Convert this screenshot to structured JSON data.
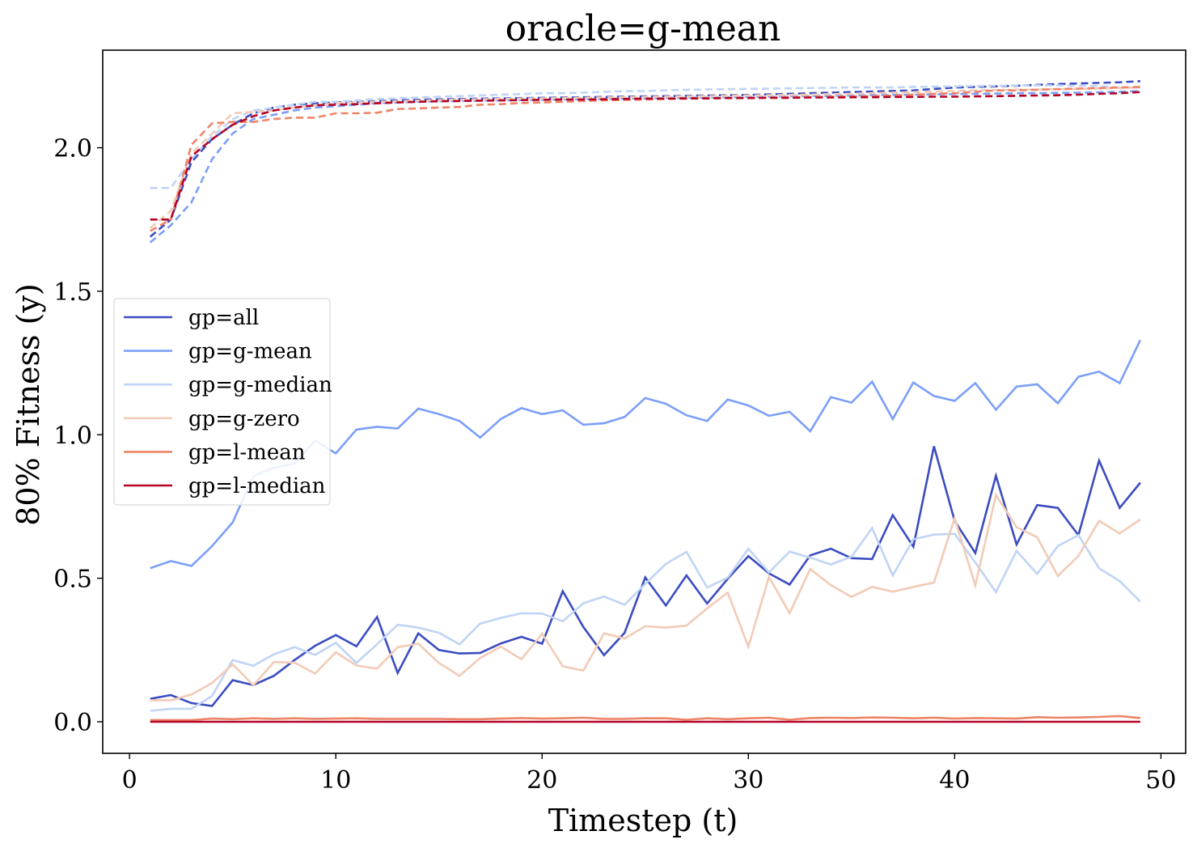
{
  "chart_data": {
    "type": "line",
    "title": "oracle=g-mean",
    "xlabel": "Timestep (t)",
    "ylabel": "80% Fitness (y)",
    "xlim": [
      -1.3,
      51.2
    ],
    "ylim": [
      -0.11,
      2.34
    ],
    "xticks": [
      0,
      10,
      20,
      30,
      40,
      50
    ],
    "yticks": [
      0.0,
      0.5,
      1.0,
      1.5,
      2.0
    ],
    "xtick_labels": [
      "0",
      "10",
      "20",
      "30",
      "40",
      "50"
    ],
    "ytick_labels": [
      "0.0",
      "0.5",
      "1.0",
      "1.5",
      "2.0"
    ],
    "grid": false,
    "legend_placement": "center-left",
    "x": [
      1,
      2,
      3,
      4,
      5,
      6,
      7,
      8,
      9,
      10,
      11,
      12,
      13,
      14,
      15,
      16,
      17,
      18,
      19,
      20,
      21,
      22,
      23,
      24,
      25,
      26,
      27,
      28,
      29,
      30,
      31,
      32,
      33,
      34,
      35,
      36,
      37,
      38,
      39,
      40,
      41,
      42,
      43,
      44,
      45,
      46,
      47,
      48,
      49
    ],
    "series": [
      {
        "name": "gp=all",
        "color": "#3b4cc0",
        "solid": [
          0.08,
          0.093,
          0.065,
          0.055,
          0.145,
          0.128,
          0.16,
          0.215,
          0.265,
          0.302,
          0.263,
          0.365,
          0.17,
          0.308,
          0.25,
          0.238,
          0.24,
          0.273,
          0.296,
          0.272,
          0.455,
          0.33,
          0.232,
          0.31,
          0.503,
          0.405,
          0.51,
          0.412,
          0.498,
          0.577,
          0.517,
          0.478,
          0.58,
          0.603,
          0.57,
          0.567,
          0.72,
          0.61,
          0.96,
          0.7,
          0.588,
          0.857,
          0.618,
          0.755,
          0.745,
          0.65,
          0.91,
          0.745,
          0.833
        ],
        "dashed": [
          1.69,
          1.75,
          1.95,
          2.03,
          2.08,
          2.12,
          2.14,
          2.15,
          2.155,
          2.158,
          2.16,
          2.162,
          2.165,
          2.167,
          2.169,
          2.17,
          2.171,
          2.172,
          2.173,
          2.174,
          2.175,
          2.176,
          2.177,
          2.178,
          2.179,
          2.18,
          2.181,
          2.182,
          2.183,
          2.184,
          2.186,
          2.188,
          2.19,
          2.192,
          2.194,
          2.196,
          2.198,
          2.2,
          2.205,
          2.21,
          2.212,
          2.214,
          2.216,
          2.219,
          2.222,
          2.224,
          2.226,
          2.228,
          2.232
        ]
      },
      {
        "name": "gp=g-mean",
        "color": "#7b9ff9",
        "solid": [
          0.535,
          0.56,
          0.543,
          0.612,
          0.695,
          0.855,
          0.885,
          0.9,
          0.98,
          0.935,
          1.018,
          1.028,
          1.022,
          1.091,
          1.072,
          1.048,
          0.99,
          1.055,
          1.093,
          1.072,
          1.085,
          1.035,
          1.04,
          1.062,
          1.128,
          1.108,
          1.068,
          1.048,
          1.123,
          1.102,
          1.066,
          1.08,
          1.012,
          1.131,
          1.112,
          1.185,
          1.055,
          1.182,
          1.135,
          1.118,
          1.18,
          1.087,
          1.168,
          1.176,
          1.11,
          1.202,
          1.22,
          1.18,
          1.33
        ],
        "dashed": [
          1.67,
          1.73,
          1.81,
          1.96,
          2.05,
          2.1,
          2.115,
          2.13,
          2.14,
          2.145,
          2.15,
          2.155,
          2.158,
          2.16,
          2.162,
          2.163,
          2.164,
          2.165,
          2.166,
          2.167,
          2.168,
          2.169,
          2.17,
          2.171,
          2.172,
          2.173,
          2.174,
          2.175,
          2.176,
          2.177,
          2.178,
          2.179,
          2.18,
          2.181,
          2.182,
          2.183,
          2.184,
          2.185,
          2.186,
          2.187,
          2.188,
          2.189,
          2.19,
          2.19,
          2.191,
          2.192,
          2.193,
          2.195,
          2.198
        ]
      },
      {
        "name": "gp=g-median",
        "color": "#c0d4f5",
        "solid": [
          0.038,
          0.045,
          0.045,
          0.09,
          0.215,
          0.195,
          0.235,
          0.26,
          0.233,
          0.275,
          0.205,
          0.27,
          0.338,
          0.328,
          0.31,
          0.27,
          0.342,
          0.362,
          0.378,
          0.377,
          0.35,
          0.413,
          0.436,
          0.408,
          0.48,
          0.55,
          0.592,
          0.468,
          0.502,
          0.603,
          0.52,
          0.593,
          0.572,
          0.548,
          0.575,
          0.675,
          0.51,
          0.636,
          0.652,
          0.655,
          0.555,
          0.452,
          0.595,
          0.515,
          0.612,
          0.65,
          0.535,
          0.49,
          0.418
        ],
        "dashed": [
          1.86,
          1.86,
          1.96,
          2.04,
          2.1,
          2.13,
          2.14,
          2.15,
          2.16,
          2.16,
          2.165,
          2.17,
          2.172,
          2.175,
          2.178,
          2.18,
          2.182,
          2.185,
          2.187,
          2.19,
          2.19,
          2.192,
          2.195,
          2.197,
          2.198,
          2.2,
          2.202,
          2.203,
          2.204,
          2.205,
          2.206,
          2.207,
          2.208,
          2.209,
          2.21,
          2.21,
          2.21,
          2.212,
          2.213,
          2.214,
          2.215,
          2.216,
          2.217,
          2.217,
          2.217,
          2.216,
          2.215,
          2.21,
          2.21
        ]
      },
      {
        "name": "gp=g-zero",
        "color": "#f2cbb7",
        "solid": [
          0.075,
          0.075,
          0.095,
          0.135,
          0.2,
          0.127,
          0.208,
          0.206,
          0.168,
          0.242,
          0.196,
          0.185,
          0.26,
          0.272,
          0.205,
          0.16,
          0.222,
          0.262,
          0.218,
          0.307,
          0.193,
          0.178,
          0.308,
          0.29,
          0.333,
          0.328,
          0.335,
          0.395,
          0.45,
          0.262,
          0.505,
          0.378,
          0.532,
          0.476,
          0.435,
          0.47,
          0.453,
          0.47,
          0.485,
          0.71,
          0.475,
          0.79,
          0.678,
          0.643,
          0.508,
          0.578,
          0.7,
          0.656,
          0.705
        ],
        "dashed": [
          1.72,
          1.78,
          1.98,
          2.05,
          2.12,
          2.125,
          2.13,
          2.14,
          2.148,
          2.155,
          2.158,
          2.16,
          2.162,
          2.164,
          2.166,
          2.168,
          2.169,
          2.17,
          2.171,
          2.172,
          2.173,
          2.174,
          2.175,
          2.176,
          2.177,
          2.178,
          2.179,
          2.18,
          2.181,
          2.182,
          2.183,
          2.184,
          2.185,
          2.187,
          2.188,
          2.19,
          2.192,
          2.194,
          2.196,
          2.198,
          2.2,
          2.201,
          2.202,
          2.203,
          2.204,
          2.205,
          2.206,
          2.208,
          2.21
        ]
      },
      {
        "name": "gp=l-mean",
        "color": "#ee8468",
        "solid": [
          0.006,
          0.006,
          0.006,
          0.011,
          0.009,
          0.012,
          0.01,
          0.012,
          0.01,
          0.011,
          0.012,
          0.01,
          0.01,
          0.01,
          0.01,
          0.009,
          0.009,
          0.011,
          0.013,
          0.011,
          0.012,
          0.014,
          0.01,
          0.01,
          0.012,
          0.012,
          0.007,
          0.012,
          0.009,
          0.012,
          0.014,
          0.007,
          0.013,
          0.014,
          0.013,
          0.015,
          0.014,
          0.012,
          0.014,
          0.011,
          0.013,
          0.012,
          0.011,
          0.016,
          0.014,
          0.015,
          0.017,
          0.02,
          0.013
        ],
        "dashed": [
          1.71,
          1.75,
          2.01,
          2.085,
          2.09,
          2.09,
          2.1,
          2.105,
          2.105,
          2.12,
          2.12,
          2.122,
          2.135,
          2.137,
          2.14,
          2.142,
          2.15,
          2.152,
          2.156,
          2.158,
          2.16,
          2.163,
          2.165,
          2.167,
          2.168,
          2.17,
          2.171,
          2.172,
          2.173,
          2.174,
          2.175,
          2.176,
          2.177,
          2.178,
          2.179,
          2.18,
          2.182,
          2.185,
          2.188,
          2.19,
          2.195,
          2.2,
          2.2,
          2.202,
          2.204,
          2.206,
          2.208,
          2.21,
          2.212
        ]
      },
      {
        "name": "gp=l-median",
        "color": "#b40426",
        "solid": [
          0.0,
          0.0,
          0.0,
          0.0,
          0.0,
          0.0,
          0.0,
          0.0,
          0.0,
          0.0,
          0.0,
          0.0,
          0.0,
          0.0,
          0.0,
          0.0,
          0.0,
          0.0,
          0.0,
          0.0,
          0.0,
          0.0,
          0.0,
          0.0,
          0.0,
          0.0,
          0.0,
          0.0,
          0.0,
          0.0,
          0.0,
          0.0,
          0.0,
          0.0,
          0.0,
          0.0,
          0.0,
          0.0,
          0.0,
          0.0,
          0.0,
          0.0,
          0.0,
          0.0,
          0.0,
          0.0,
          0.0,
          0.0,
          0.0
        ],
        "dashed": [
          1.75,
          1.75,
          1.97,
          2.03,
          2.08,
          2.11,
          2.13,
          2.14,
          2.148,
          2.15,
          2.152,
          2.155,
          2.158,
          2.16,
          2.162,
          2.163,
          2.164,
          2.165,
          2.166,
          2.167,
          2.168,
          2.168,
          2.169,
          2.17,
          2.171,
          2.171,
          2.172,
          2.172,
          2.173,
          2.173,
          2.174,
          2.174,
          2.175,
          2.175,
          2.176,
          2.176,
          2.177,
          2.177,
          2.178,
          2.178,
          2.179,
          2.18,
          2.181,
          2.182,
          2.183,
          2.185,
          2.188,
          2.19,
          2.194
        ]
      }
    ]
  }
}
